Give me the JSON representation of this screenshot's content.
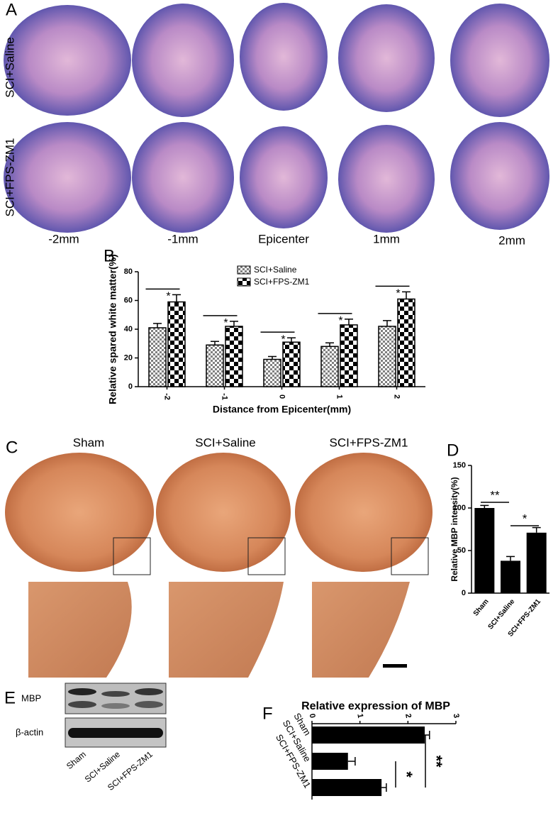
{
  "figure": {
    "panel_labels": [
      "A",
      "B",
      "C",
      "D",
      "E",
      "F"
    ],
    "panel_a": {
      "rows": [
        "SCI+Saline",
        "SCI+FPS-ZM1"
      ],
      "columns": [
        "-2mm",
        "-1mm",
        "Epicenter",
        "1mm",
        "2mm"
      ]
    },
    "panel_c": {
      "columns": [
        "Sham",
        "SCI+Saline",
        "SCI+FPS-ZM1"
      ]
    },
    "panel_e": {
      "bands": [
        "MBP",
        "β-actin"
      ],
      "lanes": [
        "Sham",
        "SCI+Saline",
        "SCI+FPS-ZM1"
      ]
    }
  },
  "chart_data": [
    {
      "type": "bar",
      "categories": [
        "-2",
        "-1",
        "0",
        "1",
        "2"
      ],
      "series": [
        {
          "name": "SCI+Saline",
          "color": "#808080",
          "values": [
            41,
            29,
            19,
            28,
            42
          ],
          "errors": [
            3,
            2.5,
            2,
            2.5,
            4
          ]
        },
        {
          "name": "SCI+FPS-ZM1",
          "color": "#000000",
          "values": [
            59,
            42,
            31,
            43,
            61
          ],
          "errors": [
            5,
            3.5,
            3,
            4,
            5
          ]
        }
      ],
      "ylim": [
        0,
        80
      ],
      "yticks": [
        0,
        20,
        40,
        60,
        80
      ],
      "xlabel": "Distance from Epicenter(mm)",
      "ylabel": "Relative spared white matter(%)",
      "annotations": [
        "*",
        "*",
        "*",
        "*",
        "*"
      ]
    },
    {
      "type": "bar",
      "categories": [
        "Sham",
        "SCI+Saline",
        "SCI+FPS-ZM1"
      ],
      "values": [
        100,
        38,
        71
      ],
      "errors": [
        3,
        5,
        6
      ],
      "color": "#000000",
      "ylim": [
        0,
        150
      ],
      "yticks": [
        0,
        50,
        100,
        150
      ],
      "ylabel": "Relative MBP intensity(%)",
      "annotations": [
        "**",
        "*"
      ]
    },
    {
      "type": "hbar",
      "title": "Relative expression of MBP",
      "categories": [
        "Sham",
        "SCI+Saline",
        "SCI+FPS-ZM1"
      ],
      "values": [
        2.35,
        0.75,
        1.45
      ],
      "errors": [
        0.1,
        0.15,
        0.1
      ],
      "color": "#000000",
      "xlim": [
        0,
        3
      ],
      "xticks": [
        0,
        1,
        2,
        3
      ],
      "annotations": [
        "**",
        "*"
      ]
    }
  ]
}
